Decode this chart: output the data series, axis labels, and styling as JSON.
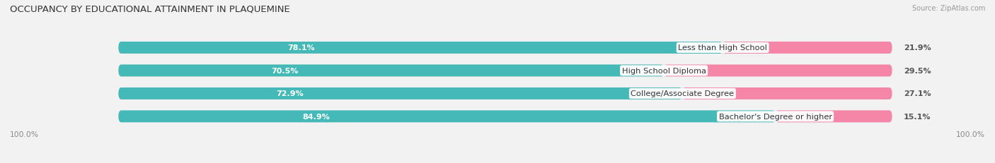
{
  "title": "OCCUPANCY BY EDUCATIONAL ATTAINMENT IN PLAQUEMINE",
  "source": "Source: ZipAtlas.com",
  "categories": [
    "Less than High School",
    "High School Diploma",
    "College/Associate Degree",
    "Bachelor's Degree or higher"
  ],
  "owner_pct": [
    78.1,
    70.5,
    72.9,
    84.9
  ],
  "renter_pct": [
    21.9,
    29.5,
    27.1,
    15.1
  ],
  "owner_color": "#45b8b8",
  "renter_color": "#f586a8",
  "bg_color": "#f2f2f2",
  "bar_bg_color": "#e2e2e2",
  "title_fontsize": 9.5,
  "label_fontsize": 8.2,
  "pct_fontsize": 8.0,
  "legend_fontsize": 8.2,
  "source_fontsize": 7.0,
  "figsize": [
    14.06,
    2.32
  ],
  "dpi": 100
}
